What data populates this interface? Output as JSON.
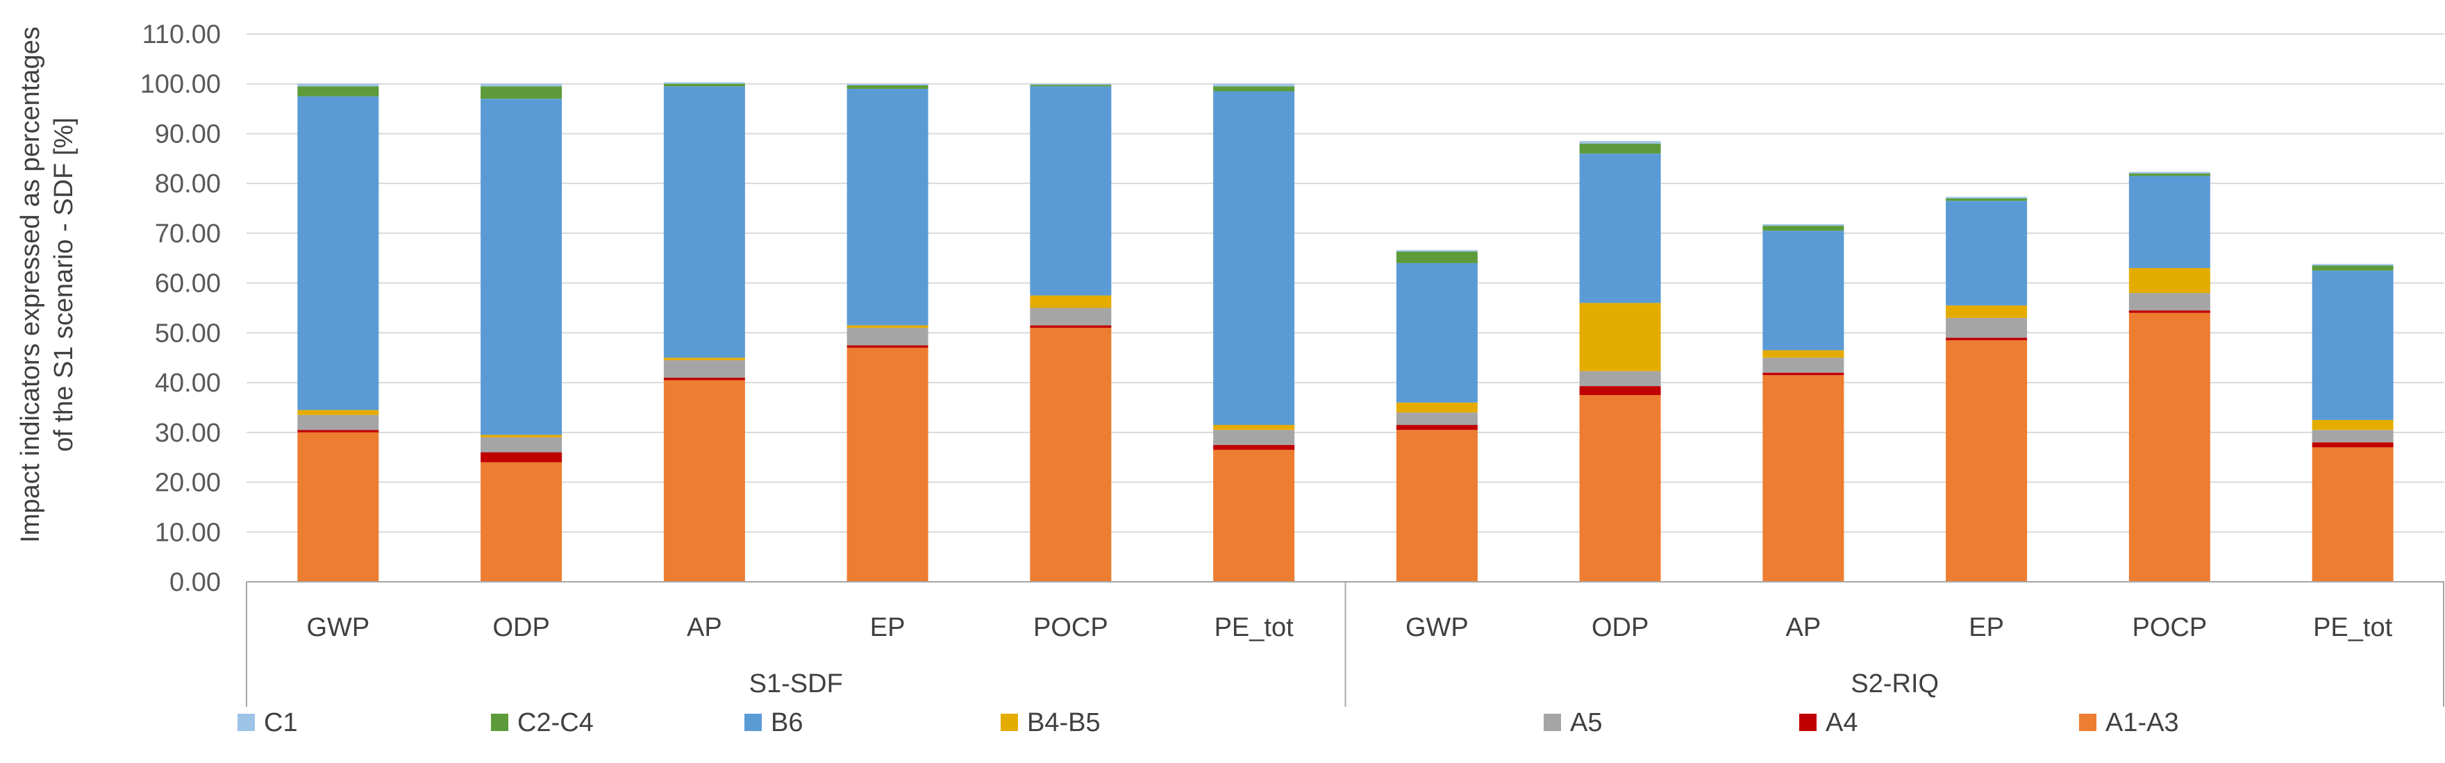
{
  "chart_data": {
    "type": "bar",
    "stacked": true,
    "title": "",
    "ylabel_lines": [
      "Impact indicators expressed  as percentages",
      "of the S1 scenario - SDF [%]"
    ],
    "xlabel": "",
    "ylim": [
      0,
      110
    ],
    "yticks": [
      "0.00",
      "10.00",
      "20.00",
      "30.00",
      "40.00",
      "50.00",
      "60.00",
      "70.00",
      "80.00",
      "90.00",
      "100.00",
      "110.00"
    ],
    "grid": true,
    "legend_position": "bottom",
    "groups": [
      {
        "name": "S1-SDF",
        "categories": [
          "GWP",
          "ODP",
          "AP",
          "EP",
          "POCP",
          "PE_tot"
        ]
      },
      {
        "name": "S2-RIQ",
        "categories": [
          "GWP",
          "ODP",
          "AP",
          "EP",
          "POCP",
          "PE_tot"
        ]
      }
    ],
    "series": [
      {
        "name": "A1-A3",
        "color": "#ED7D31",
        "values": [
          30.0,
          24.0,
          40.5,
          47.0,
          51.0,
          26.5,
          30.5,
          37.5,
          41.5,
          48.5,
          54.0,
          27.0
        ]
      },
      {
        "name": "A4",
        "color": "#C00000",
        "values": [
          0.5,
          2.0,
          0.5,
          0.5,
          0.5,
          1.0,
          1.0,
          1.8,
          0.5,
          0.5,
          0.5,
          1.0
        ]
      },
      {
        "name": "A5",
        "color": "#A5A5A5",
        "values": [
          3.0,
          3.0,
          3.5,
          3.5,
          3.5,
          3.0,
          2.5,
          3.0,
          3.0,
          4.0,
          3.5,
          2.5
        ]
      },
      {
        "name": "B4-B5",
        "color": "#E5AC00",
        "values": [
          1.0,
          0.5,
          0.5,
          0.5,
          2.5,
          1.0,
          2.0,
          13.7,
          1.5,
          2.5,
          5.0,
          2.0
        ]
      },
      {
        "name": "B6",
        "color": "#5B9BD5",
        "values": [
          63.0,
          67.5,
          54.5,
          47.5,
          42.0,
          67.0,
          28.0,
          30.0,
          24.0,
          21.0,
          18.5,
          30.0
        ]
      },
      {
        "name": "C2-C4",
        "color": "#5D9B3A",
        "values": [
          2.0,
          2.5,
          0.5,
          0.7,
          0.3,
          1.0,
          2.3,
          2.0,
          1.0,
          0.5,
          0.5,
          1.0
        ]
      },
      {
        "name": "C1",
        "color": "#9DC3E6",
        "values": [
          0.5,
          0.5,
          0.3,
          0.3,
          0.2,
          0.5,
          0.3,
          0.5,
          0.3,
          0.3,
          0.3,
          0.3
        ]
      }
    ]
  }
}
